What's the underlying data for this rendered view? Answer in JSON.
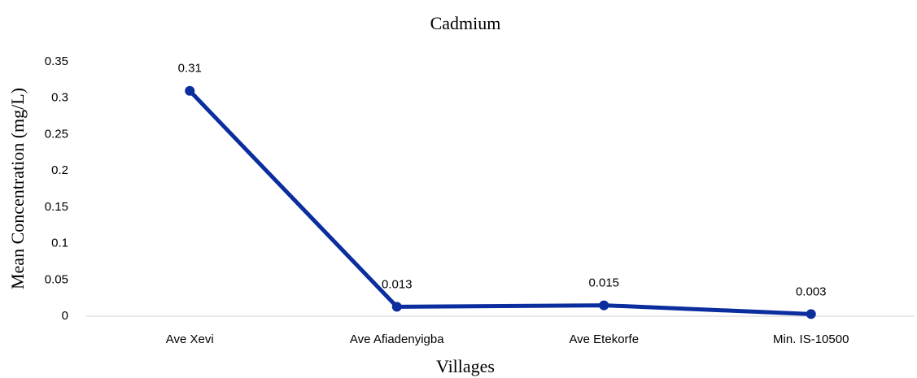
{
  "chart_data": {
    "type": "line",
    "title": "Cadmium",
    "x_label": "Villages",
    "y_label": "Mean Concentration (mg/L)",
    "categories": [
      "Ave Xevi",
      "Ave Afiadenyigba",
      "Ave Etekorfe",
      "Min. IS-10500"
    ],
    "series": [
      {
        "name": "Cadmium",
        "color": "#0b2d9e",
        "values": [
          0.31,
          0.013,
          0.015,
          0.003
        ]
      }
    ],
    "ylim": [
      0,
      0.35
    ],
    "yticks": [
      0,
      0.05,
      0.1,
      0.15,
      0.2,
      0.25,
      0.3,
      0.35
    ],
    "grid": false
  }
}
